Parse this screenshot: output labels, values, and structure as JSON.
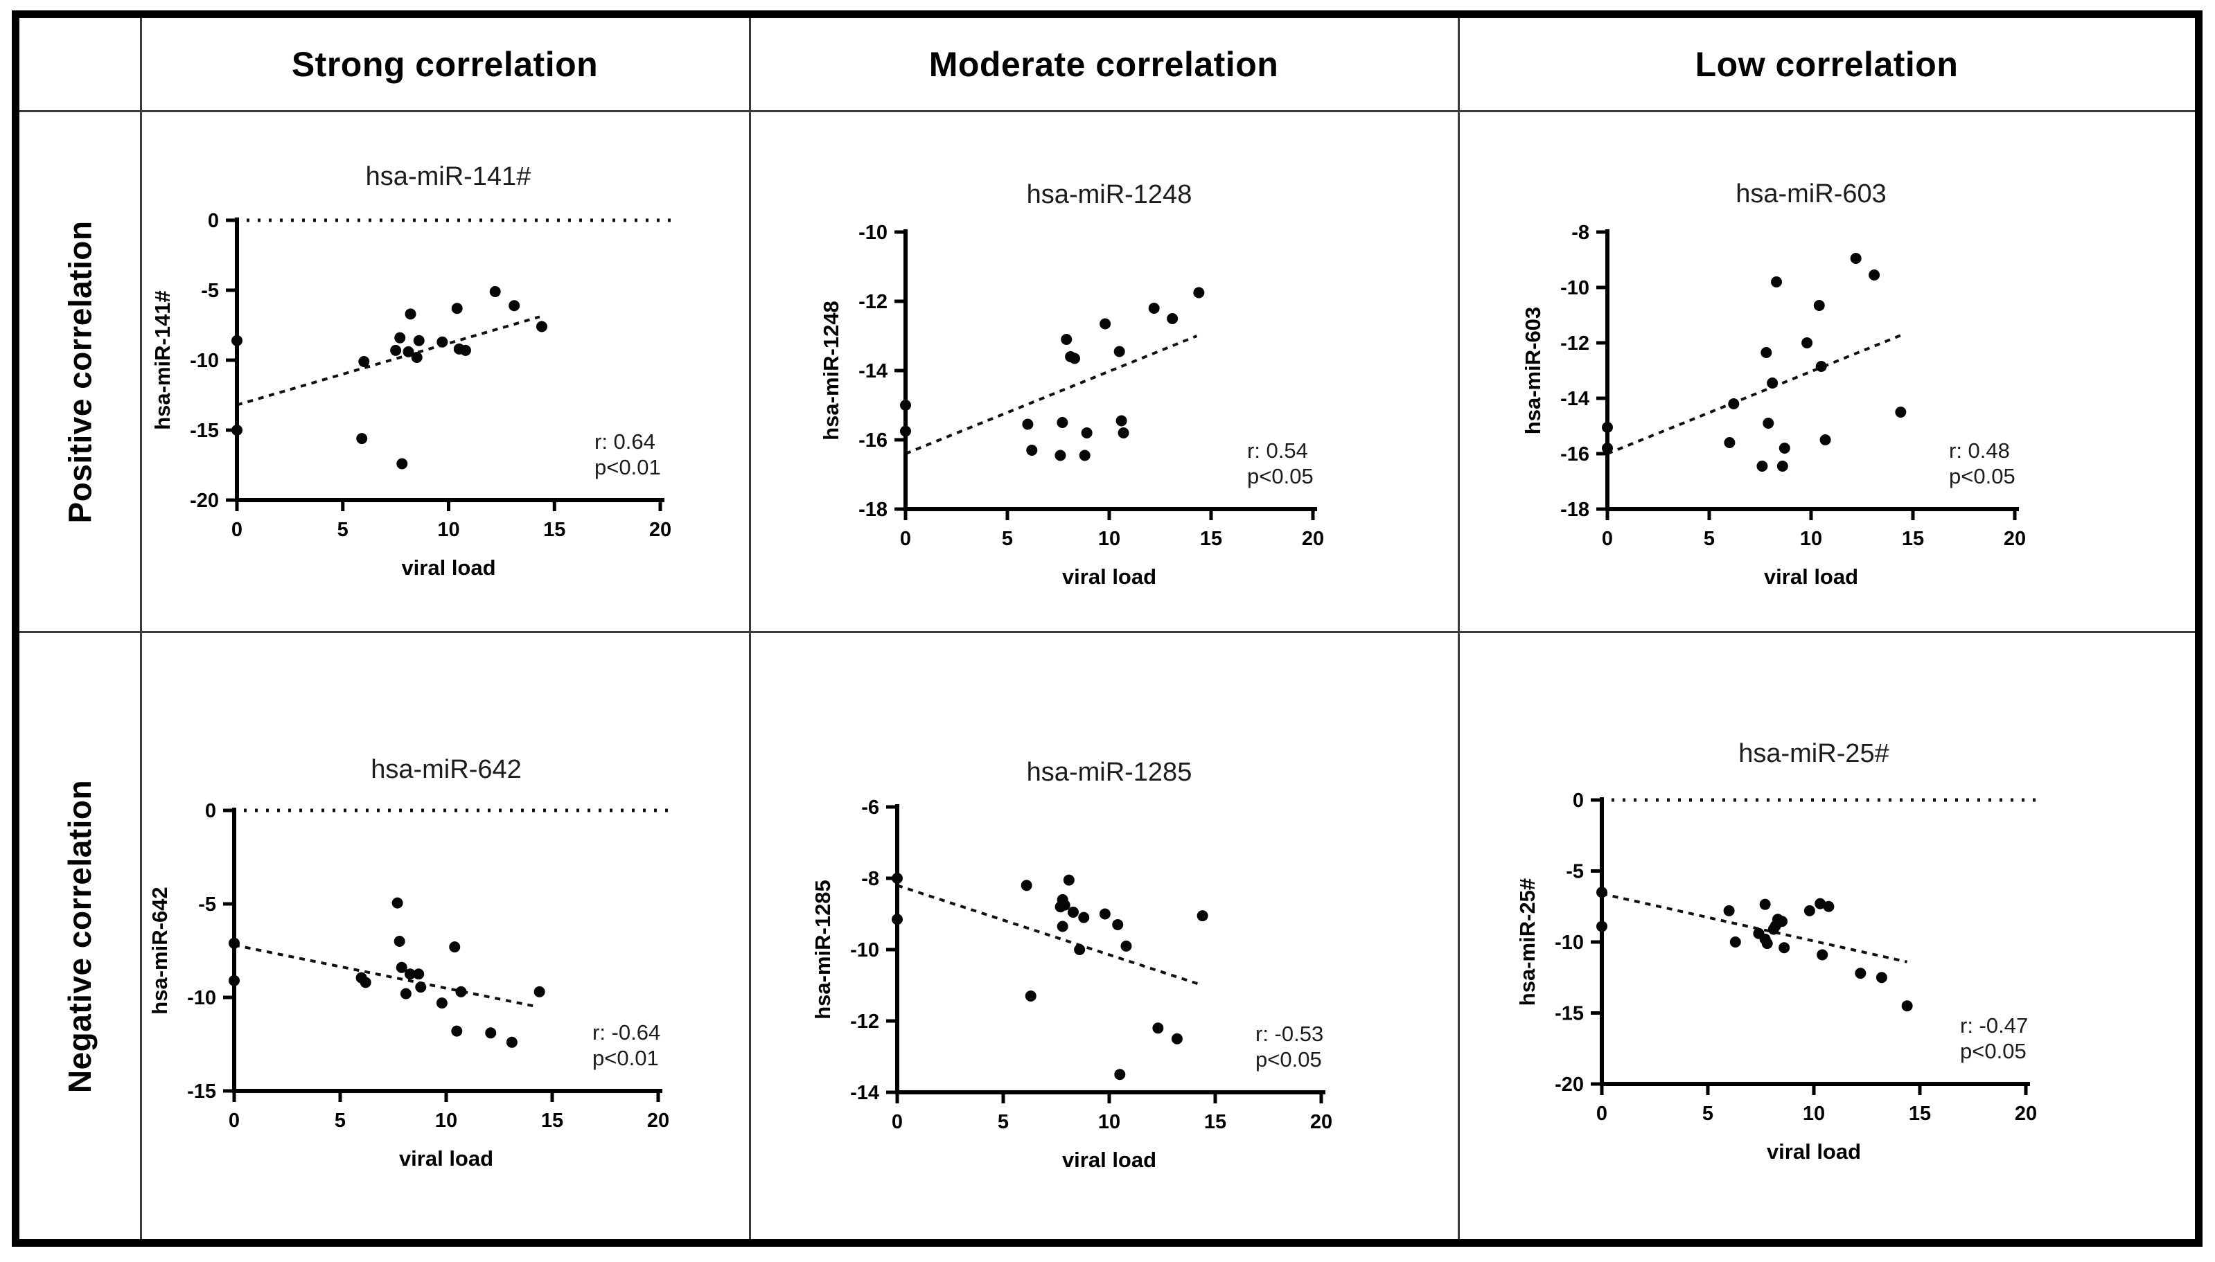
{
  "figure": {
    "col_headers": [
      "Strong correlation",
      "Moderate correlation",
      "Low correlation"
    ],
    "row_headers": [
      "Positive correlation",
      "Negative correlation"
    ],
    "accent_color": "#000000",
    "background_color": "#ffffff"
  },
  "chart_data": [
    {
      "type": "scatter",
      "column": "Strong correlation",
      "row": "Positive correlation",
      "title": "hsa-miR-141#",
      "xlabel": "viral load",
      "ylabel": "hsa-miR-141#",
      "xlim": [
        0,
        20
      ],
      "ylim": [
        -20,
        0
      ],
      "xticks": [
        0,
        5,
        10,
        15,
        20
      ],
      "yticks": [
        0,
        -5,
        -10,
        -15,
        -20
      ],
      "zero_ref_line": true,
      "grid": false,
      "points": [
        [
          0,
          -8.6
        ],
        [
          0,
          -15
        ],
        [
          5.9,
          -15.6
        ],
        [
          6,
          -10.1
        ],
        [
          7.5,
          -9.3
        ],
        [
          7.7,
          -8.4
        ],
        [
          7.8,
          -17.4
        ],
        [
          8.1,
          -9.4
        ],
        [
          8.2,
          -6.7
        ],
        [
          8.5,
          -9.8
        ],
        [
          8.6,
          -8.6
        ],
        [
          9.7,
          -8.7
        ],
        [
          10.4,
          -6.3
        ],
        [
          10.5,
          -9.2
        ],
        [
          10.8,
          -9.3
        ],
        [
          12.2,
          -5.1
        ],
        [
          13.1,
          -6.1
        ],
        [
          14.4,
          -7.6
        ]
      ],
      "trend_line": {
        "from": [
          0,
          -13.2
        ],
        "to": [
          14.3,
          -6.9
        ]
      },
      "annotation": {
        "r": "r: 0.64",
        "p": "p<0.01"
      }
    },
    {
      "type": "scatter",
      "column": "Moderate correlation",
      "row": "Positive correlation",
      "title": "hsa-miR-1248",
      "xlabel": "viral load",
      "ylabel": "hsa-miR-1248",
      "xlim": [
        0,
        20
      ],
      "ylim": [
        -18,
        -10
      ],
      "xticks": [
        0,
        5,
        10,
        15,
        20
      ],
      "yticks": [
        -10,
        -12,
        -14,
        -16,
        -18
      ],
      "zero_ref_line": false,
      "grid": false,
      "points": [
        [
          0,
          -15.0
        ],
        [
          0,
          -15.75
        ],
        [
          6,
          -15.55
        ],
        [
          6.2,
          -16.3
        ],
        [
          7.6,
          -16.45
        ],
        [
          7.7,
          -15.5
        ],
        [
          7.9,
          -13.1
        ],
        [
          8.1,
          -13.6
        ],
        [
          8.3,
          -13.65
        ],
        [
          8.8,
          -16.45
        ],
        [
          8.9,
          -15.8
        ],
        [
          9.8,
          -12.65
        ],
        [
          10.5,
          -13.45
        ],
        [
          10.6,
          -15.45
        ],
        [
          10.7,
          -15.8
        ],
        [
          12.2,
          -12.2
        ],
        [
          13.1,
          -12.5
        ],
        [
          14.4,
          -11.75
        ]
      ],
      "trend_line": {
        "from": [
          0,
          -16.4
        ],
        "to": [
          14.3,
          -13.0
        ]
      },
      "annotation": {
        "r": "r: 0.54",
        "p": "p<0.05"
      }
    },
    {
      "type": "scatter",
      "column": "Low correlation",
      "row": "Positive correlation",
      "title": "hsa-miR-603",
      "xlabel": "viral load",
      "ylabel": "hsa-miR-603",
      "xlim": [
        0,
        20
      ],
      "ylim": [
        -18,
        -8
      ],
      "xticks": [
        0,
        5,
        10,
        15,
        20
      ],
      "yticks": [
        -8,
        -10,
        -12,
        -14,
        -16,
        -18
      ],
      "zero_ref_line": false,
      "grid": false,
      "points": [
        [
          0,
          -15.05
        ],
        [
          0,
          -15.8
        ],
        [
          6,
          -15.6
        ],
        [
          6.2,
          -14.2
        ],
        [
          7.6,
          -16.45
        ],
        [
          7.8,
          -12.35
        ],
        [
          7.9,
          -14.9
        ],
        [
          8.1,
          -13.45
        ],
        [
          8.3,
          -9.8
        ],
        [
          8.6,
          -16.45
        ],
        [
          8.7,
          -15.8
        ],
        [
          9.8,
          -12.0
        ],
        [
          10.4,
          -10.65
        ],
        [
          10.5,
          -12.85
        ],
        [
          10.7,
          -15.5
        ],
        [
          12.2,
          -8.95
        ],
        [
          13.1,
          -9.55
        ],
        [
          14.4,
          -14.5
        ]
      ],
      "trend_line": {
        "from": [
          0,
          -16.0
        ],
        "to": [
          14.5,
          -11.7
        ]
      },
      "annotation": {
        "r": "r: 0.48",
        "p": "p<0.05"
      }
    },
    {
      "type": "scatter",
      "column": "Strong correlation",
      "row": "Negative correlation",
      "title": "hsa-miR-642",
      "xlabel": "viral load",
      "ylabel": "hsa-miR-642",
      "xlim": [
        0,
        20
      ],
      "ylim": [
        -15,
        0
      ],
      "xticks": [
        0,
        5,
        10,
        15,
        20
      ],
      "yticks": [
        0,
        -5,
        -10,
        -15
      ],
      "zero_ref_line": true,
      "grid": false,
      "points": [
        [
          0,
          -7.1
        ],
        [
          0,
          -9.1
        ],
        [
          6,
          -8.95
        ],
        [
          6.2,
          -9.2
        ],
        [
          7.7,
          -4.95
        ],
        [
          7.8,
          -7.0
        ],
        [
          7.9,
          -8.4
        ],
        [
          8.1,
          -9.8
        ],
        [
          8.3,
          -8.75
        ],
        [
          8.7,
          -8.75
        ],
        [
          8.8,
          -9.45
        ],
        [
          9.8,
          -10.3
        ],
        [
          10.4,
          -7.3
        ],
        [
          10.5,
          -11.8
        ],
        [
          10.7,
          -9.7
        ],
        [
          12.1,
          -11.9
        ],
        [
          13.1,
          -12.4
        ],
        [
          14.4,
          -9.7
        ]
      ],
      "trend_line": {
        "from": [
          0,
          -7.2
        ],
        "to": [
          14.3,
          -10.5
        ]
      },
      "annotation": {
        "r": "r: -0.64",
        "p": "p<0.01"
      }
    },
    {
      "type": "scatter",
      "column": "Moderate correlation",
      "row": "Negative correlation",
      "title": "hsa-miR-1285",
      "xlabel": "viral load",
      "ylabel": "hsa-miR-1285",
      "xlim": [
        0,
        20
      ],
      "ylim": [
        -14,
        -6
      ],
      "xticks": [
        0,
        5,
        10,
        15,
        20
      ],
      "yticks": [
        -6,
        -8,
        -10,
        -12,
        -14
      ],
      "zero_ref_line": false,
      "grid": false,
      "points": [
        [
          0,
          -8.0
        ],
        [
          0,
          -9.15
        ],
        [
          6.1,
          -8.2
        ],
        [
          6.3,
          -11.3
        ],
        [
          7.7,
          -8.8
        ],
        [
          7.8,
          -8.6
        ],
        [
          7.8,
          -9.35
        ],
        [
          7.9,
          -8.75
        ],
        [
          8.1,
          -8.05
        ],
        [
          8.3,
          -8.95
        ],
        [
          8.6,
          -10.0
        ],
        [
          8.8,
          -9.1
        ],
        [
          9.8,
          -9.0
        ],
        [
          10.4,
          -9.3
        ],
        [
          10.5,
          -13.5
        ],
        [
          10.8,
          -9.9
        ],
        [
          12.3,
          -12.2
        ],
        [
          13.2,
          -12.5
        ],
        [
          14.4,
          -9.05
        ]
      ],
      "trend_line": {
        "from": [
          0,
          -8.2
        ],
        "to": [
          14.4,
          -11.0
        ]
      },
      "annotation": {
        "r": "r: -0.53",
        "p": "p<0.05"
      }
    },
    {
      "type": "scatter",
      "column": "Low correlation",
      "row": "Negative correlation",
      "title": "hsa-miR-25#",
      "xlabel": "viral load",
      "ylabel": "hsa-miR-25#",
      "xlim": [
        0,
        20
      ],
      "ylim": [
        -20,
        0
      ],
      "xticks": [
        0,
        5,
        10,
        15,
        20
      ],
      "yticks": [
        0,
        -5,
        -10,
        -15,
        -20
      ],
      "zero_ref_line": true,
      "grid": false,
      "points": [
        [
          0,
          -6.5
        ],
        [
          0,
          -8.9
        ],
        [
          6,
          -7.8
        ],
        [
          6.3,
          -10.0
        ],
        [
          7.4,
          -9.4
        ],
        [
          7.7,
          -7.35
        ],
        [
          7.7,
          -9.8
        ],
        [
          7.8,
          -10.1
        ],
        [
          8.1,
          -9.1
        ],
        [
          8.2,
          -8.85
        ],
        [
          8.3,
          -8.4
        ],
        [
          8.5,
          -8.55
        ],
        [
          8.6,
          -10.4
        ],
        [
          9.8,
          -7.8
        ],
        [
          10.3,
          -7.3
        ],
        [
          10.4,
          -10.9
        ],
        [
          10.7,
          -7.5
        ],
        [
          12.2,
          -12.2
        ],
        [
          13.2,
          -12.5
        ],
        [
          14.4,
          -14.5
        ]
      ],
      "trend_line": {
        "from": [
          0,
          -6.6
        ],
        "to": [
          14.4,
          -11.4
        ]
      },
      "annotation": {
        "r": "r: -0.47",
        "p": "p<0.05"
      }
    }
  ]
}
